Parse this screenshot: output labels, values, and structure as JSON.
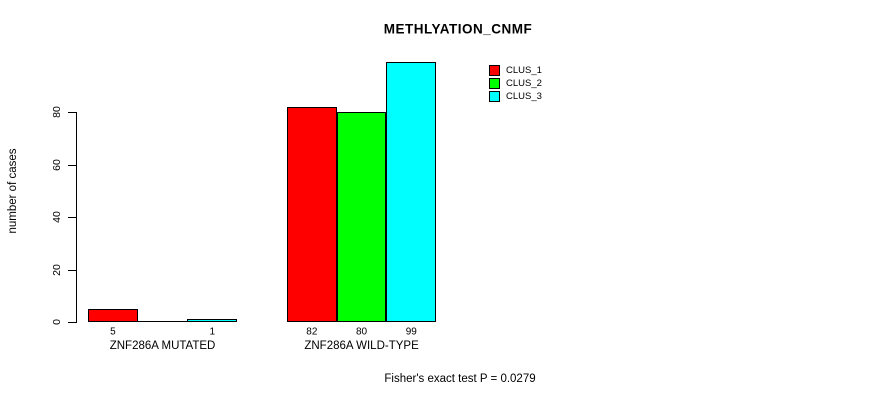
{
  "chart_data": {
    "type": "bar",
    "title": "METHLYATION_CNMF",
    "ylabel": "number of cases",
    "xlabel": "",
    "footnote": "Fisher's exact test P = 0.0279",
    "categories": [
      "ZNF286A MUTATED",
      "ZNF286A WILD-TYPE"
    ],
    "series": [
      {
        "name": "CLUS_1",
        "color": "#ff0000",
        "values": [
          5,
          82
        ]
      },
      {
        "name": "CLUS_2",
        "color": "#00ff00",
        "values": [
          0,
          80
        ]
      },
      {
        "name": "CLUS_3",
        "color": "#00ffff",
        "values": [
          1,
          99
        ]
      }
    ],
    "bar_value_labels": [
      [
        "5",
        "",
        "1"
      ],
      [
        "82",
        "80",
        "99"
      ]
    ],
    "yticks": [
      0,
      20,
      40,
      60,
      80
    ],
    "ylim": [
      0,
      100
    ],
    "grid": false,
    "legend": {
      "position": "top-right",
      "entries": [
        "CLUS_1",
        "CLUS_2",
        "CLUS_3"
      ]
    },
    "bar_border_color": "#000000",
    "background_color": "#ffffff"
  }
}
